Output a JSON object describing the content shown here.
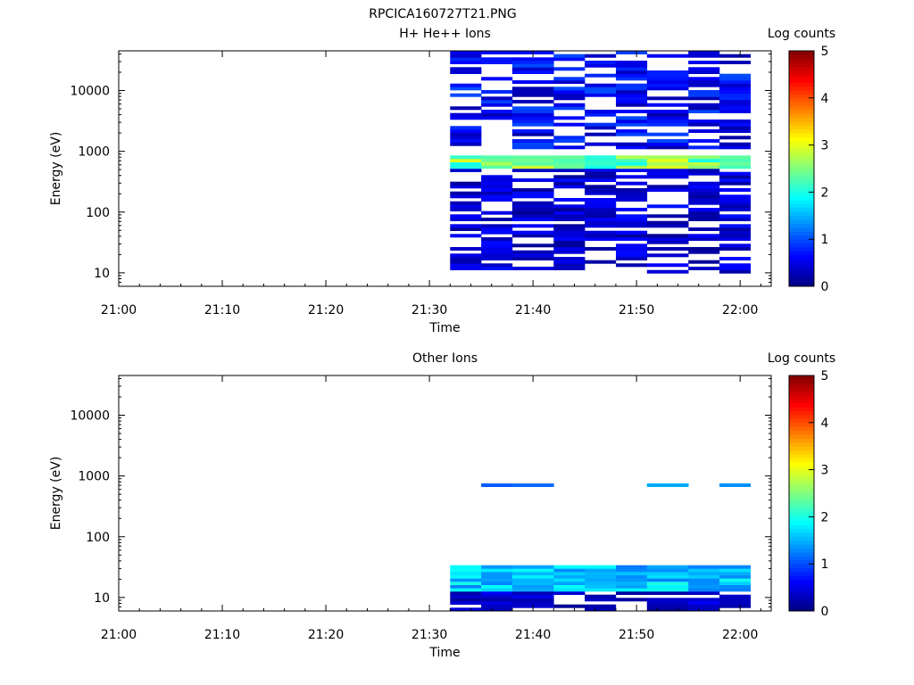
{
  "title": "RPCICA160727T21.PNG",
  "chart_data": [
    {
      "type": "heatmap",
      "title": "H+ He++ Ions",
      "xlabel": "Time",
      "ylabel": "Energy (eV)",
      "xlim": [
        "21:00",
        "22:03"
      ],
      "ylim": [
        6,
        45000
      ],
      "y_scale": "log",
      "x_ticks": [
        "21:00",
        "21:10",
        "21:20",
        "21:30",
        "21:40",
        "21:50",
        "22:00"
      ],
      "y_ticks": [
        "10",
        "100",
        "1000",
        "10000"
      ],
      "colorbar": {
        "label": "Log counts",
        "range": [
          0,
          5
        ],
        "ticks": [
          "0",
          "1",
          "2",
          "3",
          "4",
          "5"
        ],
        "colormap": "jet"
      },
      "grid": false,
      "time_bins": [
        "21:32-21:35",
        "21:35-21:38",
        "21:38-21:42",
        "21:42-21:45",
        "21:45-21:48",
        "21:48-21:51",
        "21:51-21:55",
        "21:55-21:58",
        "21:58-22:01"
      ],
      "energy_bins_eV": {
        "min": 6,
        "max": 45000,
        "count": 72,
        "spacing": "log"
      },
      "features": [
        {
          "energy_eV": [
            550,
            900
          ],
          "log_counts": [
            1.8,
            3.0
          ],
          "description": "bright band"
        },
        {
          "energy_eV": [
            1100,
            45000
          ],
          "log_counts": [
            0.2,
            1.0
          ]
        },
        {
          "energy_eV": [
            10,
            550
          ],
          "log_counts": [
            0.1,
            0.7
          ]
        }
      ]
    },
    {
      "type": "heatmap",
      "title": "Other Ions",
      "xlabel": "Time",
      "ylabel": "Energy (eV)",
      "xlim": [
        "21:00",
        "22:03"
      ],
      "ylim": [
        6,
        45000
      ],
      "y_scale": "log",
      "x_ticks": [
        "21:00",
        "21:10",
        "21:20",
        "21:30",
        "21:40",
        "21:50",
        "22:00"
      ],
      "y_ticks": [
        "10",
        "100",
        "1000",
        "10000"
      ],
      "colorbar": {
        "label": "Log counts",
        "range": [
          0,
          5
        ],
        "ticks": [
          "0",
          "1",
          "2",
          "3",
          "4",
          "5"
        ],
        "colormap": "jet"
      },
      "grid": false,
      "time_bins": [
        "21:32-21:35",
        "21:35-21:38",
        "21:38-21:42",
        "21:42-21:45",
        "21:45-21:48",
        "21:48-21:51",
        "21:51-21:55",
        "21:55-21:58",
        "21:58-22:01"
      ],
      "energy_bins_eV": {
        "min": 6,
        "max": 45000,
        "count": 72,
        "spacing": "log"
      },
      "features": [
        {
          "energy_eV": [
            12,
            32
          ],
          "log_counts": [
            1.2,
            2.0
          ],
          "description": "bright band"
        },
        {
          "energy_eV": [
            650,
            800
          ],
          "log_counts": [
            1.0,
            1.5
          ]
        },
        {
          "energy_eV": [
            6,
            12
          ],
          "log_counts": [
            0.1,
            0.6
          ]
        }
      ]
    }
  ]
}
